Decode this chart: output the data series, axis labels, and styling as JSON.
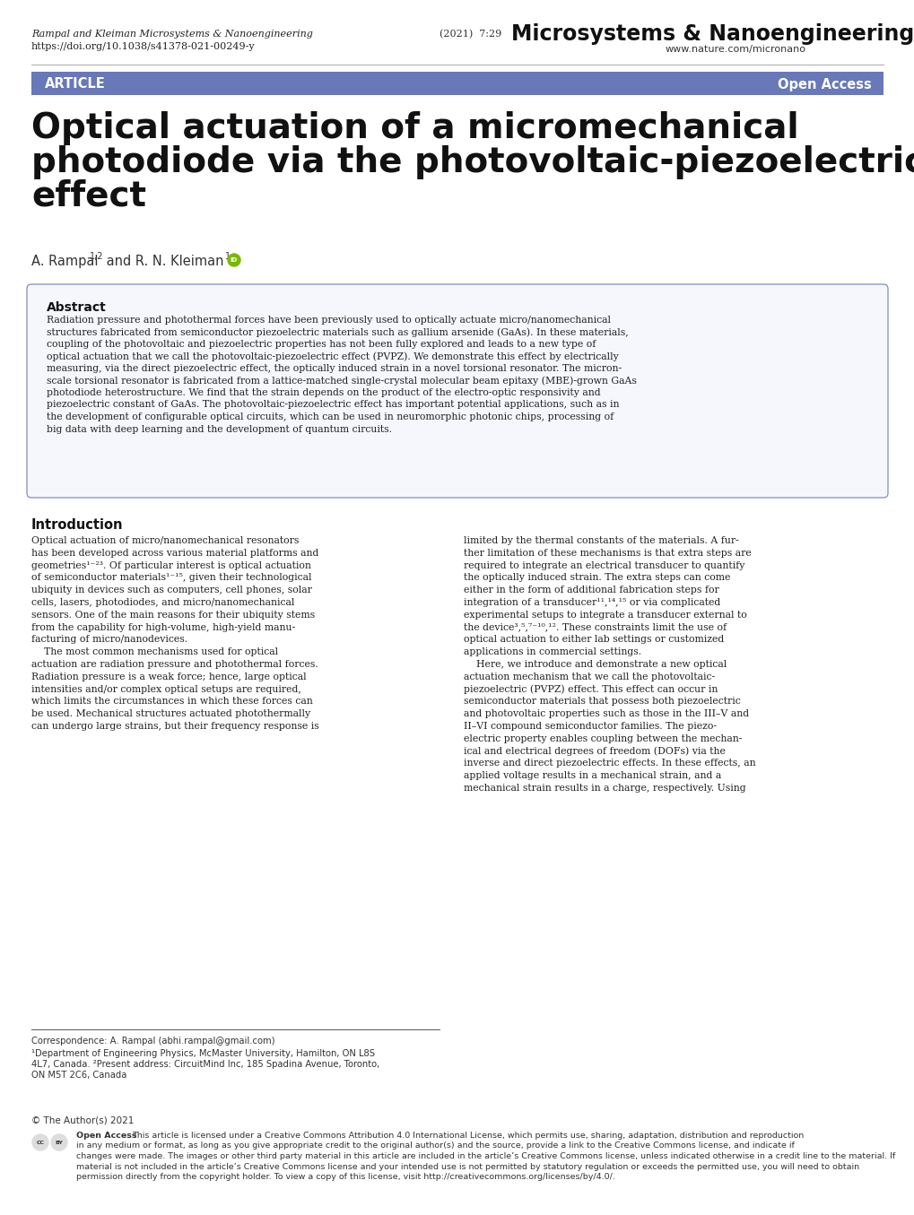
{
  "bg_color": "#ffffff",
  "header_bar_color": "#6878b8",
  "header_text_left": "ARTICLE",
  "header_text_right": "Open Access",
  "journal_name_top": "Microsystems & Nanoengineering",
  "journal_url": "www.nature.com/micronano",
  "citation_info": "(2021)  7:29",
  "authors_line1": "Rampal and Kleiman Microsystems & Nanoengineering",
  "doi": "https://doi.org/10.1038/s41378-021-00249-y",
  "main_title_line1": "Optical actuation of a micromechanical",
  "main_title_line2": "photodiode via the photovoltaic-piezoelectric",
  "main_title_line3": "effect",
  "authors": "A. Rampal",
  "authors_superscript": "1,2",
  "authors_and": " and R. N. Kleiman",
  "authors_superscript2": "1",
  "orcid_color": "#7ab800",
  "abstract_title": "Abstract",
  "abstract_text_lines": [
    "Radiation pressure and photothermal forces have been previously used to optically actuate micro/nanomechanical",
    "structures fabricated from semiconductor piezoelectric materials such as gallium arsenide (GaAs). In these materials,",
    "coupling of the photovoltaic and piezoelectric properties has not been fully explored and leads to a new type of",
    "optical actuation that we call the photovoltaic-piezoelectric effect (PVPZ). We demonstrate this effect by electrically",
    "measuring, via the direct piezoelectric effect, the optically induced strain in a novel torsional resonator. The micron-",
    "scale torsional resonator is fabricated from a lattice-matched single-crystal molecular beam epitaxy (MBE)-grown GaAs",
    "photodiode heterostructure. We find that the strain depends on the product of the electro-optic responsivity and",
    "piezoelectric constant of GaAs. The photovoltaic-piezoelectric effect has important potential applications, such as in",
    "the development of configurable optical circuits, which can be used in neuromorphic photonic chips, processing of",
    "big data with deep learning and the development of quantum circuits."
  ],
  "intro_title": "Introduction",
  "intro_col1_lines": [
    "Optical actuation of micro/nanomechanical resonators",
    "has been developed across various material platforms and",
    "geometries¹⁻²³. Of particular interest is optical actuation",
    "of semiconductor materials¹⁻¹⁵, given their technological",
    "ubiquity in devices such as computers, cell phones, solar",
    "cells, lasers, photodiodes, and micro/nanomechanical",
    "sensors. One of the main reasons for their ubiquity stems",
    "from the capability for high-volume, high-yield manu-",
    "facturing of micro/nanodevices.",
    "    The most common mechanisms used for optical",
    "actuation are radiation pressure and photothermal forces.",
    "Radiation pressure is a weak force; hence, large optical",
    "intensities and/or complex optical setups are required,",
    "which limits the circumstances in which these forces can",
    "be used. Mechanical structures actuated photothermally",
    "can undergo large strains, but their frequency response is"
  ],
  "intro_col2_lines": [
    "limited by the thermal constants of the materials. A fur-",
    "ther limitation of these mechanisms is that extra steps are",
    "required to integrate an electrical transducer to quantify",
    "the optically induced strain. The extra steps can come",
    "either in the form of additional fabrication steps for",
    "integration of a transducer¹¹,¹⁴,¹⁵ or via complicated",
    "experimental setups to integrate a transducer external to",
    "the device³,⁵,⁷⁻¹⁰,¹². These constraints limit the use of",
    "optical actuation to either lab settings or customized",
    "applications in commercial settings.",
    "    Here, we introduce and demonstrate a new optical",
    "actuation mechanism that we call the photovoltaic-",
    "piezoelectric (PVPZ) effect. This effect can occur in",
    "semiconductor materials that possess both piezoelectric",
    "and photovoltaic properties such as those in the III–V and",
    "II–VI compound semiconductor families. The piezo-",
    "electric property enables coupling between the mechan-",
    "ical and electrical degrees of freedom (DOFs) via the",
    "inverse and direct piezoelectric effects. In these effects, an",
    "applied voltage results in a mechanical strain, and a",
    "mechanical strain results in a charge, respectively. Using"
  ],
  "footnote_correspondence": "Correspondence: A. Rampal (abhi.rampal@gmail.com)",
  "footnote1_line1": "¹Department of Engineering Physics, McMaster University, Hamilton, ON L8S",
  "footnote1_line2": "4L7, Canada. ²Present address: CircuitMind Inc, 185 Spadina Avenue, Toronto,",
  "footnote1_line3": "ON M5T 2C6, Canada",
  "copyright_text": "© The Author(s) 2021",
  "open_access_bold": "Open Access",
  "open_access_text": " This article is licensed under a Creative Commons Attribution 4.0 International License, which permits use, sharing, adaptation, distribution and reproduction in any medium or format, as long as you give appropriate credit to the original author(s) and the source, provide a link to the Creative Commons license, and indicate if changes were made. The images or other third party material in this article are included in the article’s Creative Commons license, unless indicated otherwise in a credit line to the material. If material is not included in the article’s Creative Commons license and your intended use is not permitted by statutory regulation or exceeds the permitted use, you will need to obtain permission directly from the copyright holder. To view a copy of this license, visit http://creativecommons.org/licenses/by/4.0/.",
  "open_access_lines": [
    "Open Access This article is licensed under a Creative Commons Attribution 4.0 International License, which permits use, sharing, adaptation, distribution and reproduction",
    "in any medium or format, as long as you give appropriate credit to the original author(s) and the source, provide a link to the Creative Commons license, and indicate if",
    "changes were made. The images or other third party material in this article are included in the article’s Creative Commons license, unless indicated otherwise in a credit line to the material. If",
    "material is not included in the article’s Creative Commons license and your intended use is not permitted by statutory regulation or exceeds the permitted use, you will need to obtain",
    "permission directly from the copyright holder. To view a copy of this license, visit http://creativecommons.org/licenses/by/4.0/."
  ]
}
